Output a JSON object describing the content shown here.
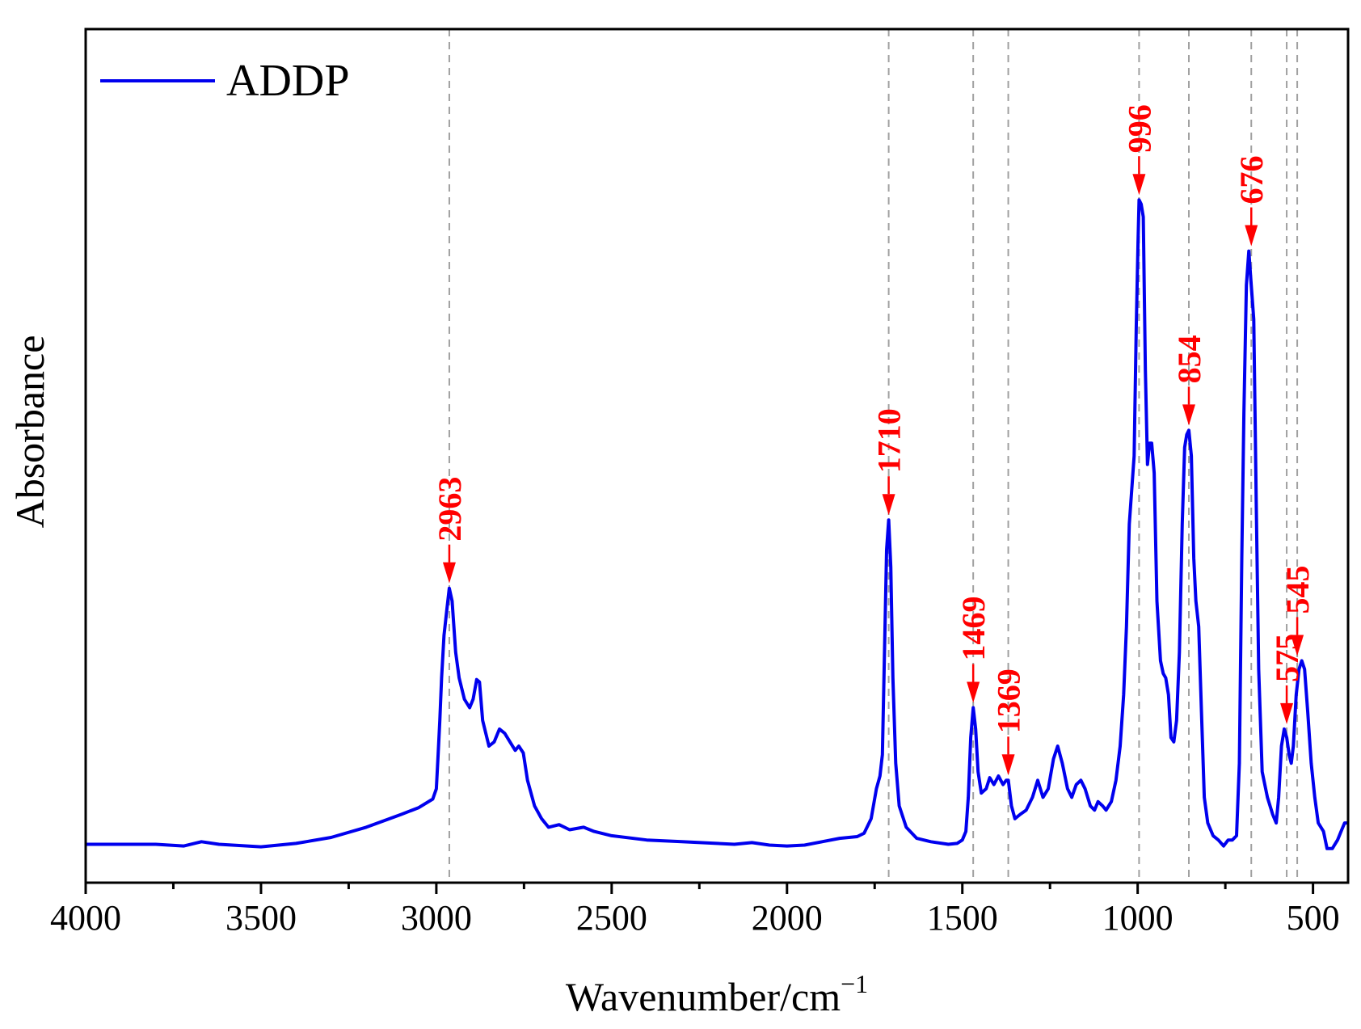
{
  "chart_data": {
    "type": "line",
    "title": "",
    "xlabel": "Wavenumber/cm",
    "xlabel_sup": "−1",
    "ylabel": "Absorbance",
    "xlim": [
      4000,
      400
    ],
    "ylim": [
      0,
      1
    ],
    "x_reversed": true,
    "y_ticks_shown": false,
    "grid": false,
    "legend": {
      "position": "top-left",
      "entries": [
        "ADDP"
      ]
    },
    "x_ticks": [
      4000,
      3500,
      3000,
      2500,
      2000,
      1500,
      1000,
      500
    ],
    "x_tick_labels": [
      "4000",
      "3500",
      "3000",
      "2500",
      "2000",
      "1500",
      "1000",
      "500"
    ],
    "x_minor_ticks": [
      3750,
      3250,
      2750,
      2250,
      1750,
      1250,
      750
    ],
    "series": [
      {
        "name": "ADDP",
        "color": "#0000ee",
        "points": [
          [
            4000,
            0.045
          ],
          [
            3800,
            0.045
          ],
          [
            3720,
            0.043
          ],
          [
            3670,
            0.048
          ],
          [
            3620,
            0.045
          ],
          [
            3500,
            0.042
          ],
          [
            3400,
            0.046
          ],
          [
            3300,
            0.053
          ],
          [
            3200,
            0.065
          ],
          [
            3100,
            0.08
          ],
          [
            3050,
            0.088
          ],
          [
            3010,
            0.098
          ],
          [
            3000,
            0.11
          ],
          [
            2995,
            0.15
          ],
          [
            2990,
            0.19
          ],
          [
            2985,
            0.24
          ],
          [
            2978,
            0.29
          ],
          [
            2970,
            0.32
          ],
          [
            2963,
            0.345
          ],
          [
            2955,
            0.33
          ],
          [
            2945,
            0.27
          ],
          [
            2935,
            0.24
          ],
          [
            2920,
            0.215
          ],
          [
            2905,
            0.205
          ],
          [
            2895,
            0.215
          ],
          [
            2885,
            0.238
          ],
          [
            2877,
            0.235
          ],
          [
            2868,
            0.19
          ],
          [
            2850,
            0.16
          ],
          [
            2835,
            0.165
          ],
          [
            2820,
            0.18
          ],
          [
            2805,
            0.175
          ],
          [
            2790,
            0.165
          ],
          [
            2775,
            0.155
          ],
          [
            2765,
            0.16
          ],
          [
            2752,
            0.152
          ],
          [
            2740,
            0.12
          ],
          [
            2720,
            0.09
          ],
          [
            2700,
            0.075
          ],
          [
            2680,
            0.065
          ],
          [
            2650,
            0.068
          ],
          [
            2620,
            0.062
          ],
          [
            2580,
            0.065
          ],
          [
            2550,
            0.06
          ],
          [
            2500,
            0.055
          ],
          [
            2400,
            0.05
          ],
          [
            2300,
            0.048
          ],
          [
            2200,
            0.046
          ],
          [
            2150,
            0.045
          ],
          [
            2100,
            0.047
          ],
          [
            2050,
            0.044
          ],
          [
            2000,
            0.043
          ],
          [
            1950,
            0.044
          ],
          [
            1900,
            0.048
          ],
          [
            1850,
            0.052
          ],
          [
            1800,
            0.054
          ],
          [
            1780,
            0.058
          ],
          [
            1760,
            0.075
          ],
          [
            1745,
            0.11
          ],
          [
            1735,
            0.125
          ],
          [
            1728,
            0.15
          ],
          [
            1722,
            0.27
          ],
          [
            1716,
            0.39
          ],
          [
            1710,
            0.425
          ],
          [
            1704,
            0.37
          ],
          [
            1698,
            0.24
          ],
          [
            1690,
            0.14
          ],
          [
            1680,
            0.09
          ],
          [
            1660,
            0.065
          ],
          [
            1630,
            0.052
          ],
          [
            1590,
            0.048
          ],
          [
            1540,
            0.045
          ],
          [
            1515,
            0.046
          ],
          [
            1500,
            0.05
          ],
          [
            1490,
            0.06
          ],
          [
            1483,
            0.1
          ],
          [
            1476,
            0.17
          ],
          [
            1469,
            0.205
          ],
          [
            1462,
            0.18
          ],
          [
            1455,
            0.13
          ],
          [
            1446,
            0.105
          ],
          [
            1432,
            0.11
          ],
          [
            1422,
            0.123
          ],
          [
            1410,
            0.115
          ],
          [
            1397,
            0.125
          ],
          [
            1384,
            0.115
          ],
          [
            1375,
            0.12
          ],
          [
            1369,
            0.12
          ],
          [
            1360,
            0.09
          ],
          [
            1350,
            0.075
          ],
          [
            1335,
            0.08
          ],
          [
            1318,
            0.085
          ],
          [
            1300,
            0.1
          ],
          [
            1285,
            0.12
          ],
          [
            1270,
            0.1
          ],
          [
            1255,
            0.11
          ],
          [
            1240,
            0.145
          ],
          [
            1228,
            0.16
          ],
          [
            1215,
            0.14
          ],
          [
            1200,
            0.11
          ],
          [
            1188,
            0.1
          ],
          [
            1175,
            0.115
          ],
          [
            1162,
            0.12
          ],
          [
            1150,
            0.11
          ],
          [
            1135,
            0.09
          ],
          [
            1123,
            0.085
          ],
          [
            1113,
            0.095
          ],
          [
            1100,
            0.09
          ],
          [
            1090,
            0.085
          ],
          [
            1075,
            0.095
          ],
          [
            1062,
            0.12
          ],
          [
            1050,
            0.16
          ],
          [
            1040,
            0.22
          ],
          [
            1032,
            0.3
          ],
          [
            1024,
            0.42
          ],
          [
            1017,
            0.46
          ],
          [
            1010,
            0.5
          ],
          [
            1004,
            0.65
          ],
          [
            999,
            0.75
          ],
          [
            996,
            0.8
          ],
          [
            990,
            0.795
          ],
          [
            984,
            0.78
          ],
          [
            978,
            0.6
          ],
          [
            972,
            0.49
          ],
          [
            966,
            0.515
          ],
          [
            960,
            0.515
          ],
          [
            953,
            0.48
          ],
          [
            945,
            0.33
          ],
          [
            935,
            0.26
          ],
          [
            927,
            0.245
          ],
          [
            920,
            0.24
          ],
          [
            912,
            0.22
          ],
          [
            905,
            0.17
          ],
          [
            897,
            0.165
          ],
          [
            889,
            0.19
          ],
          [
            881,
            0.27
          ],
          [
            873,
            0.42
          ],
          [
            866,
            0.51
          ],
          [
            860,
            0.525
          ],
          [
            854,
            0.53
          ],
          [
            847,
            0.5
          ],
          [
            840,
            0.38
          ],
          [
            834,
            0.33
          ],
          [
            826,
            0.3
          ],
          [
            818,
            0.2
          ],
          [
            810,
            0.1
          ],
          [
            800,
            0.07
          ],
          [
            785,
            0.055
          ],
          [
            770,
            0.05
          ],
          [
            755,
            0.043
          ],
          [
            742,
            0.05
          ],
          [
            730,
            0.05
          ],
          [
            718,
            0.055
          ],
          [
            710,
            0.14
          ],
          [
            703,
            0.38
          ],
          [
            697,
            0.55
          ],
          [
            690,
            0.7
          ],
          [
            683,
            0.74
          ],
          [
            676,
            0.7
          ],
          [
            669,
            0.66
          ],
          [
            662,
            0.45
          ],
          [
            655,
            0.25
          ],
          [
            645,
            0.13
          ],
          [
            630,
            0.1
          ],
          [
            615,
            0.08
          ],
          [
            605,
            0.07
          ],
          [
            598,
            0.1
          ],
          [
            590,
            0.16
          ],
          [
            582,
            0.18
          ],
          [
            575,
            0.17
          ],
          [
            568,
            0.15
          ],
          [
            562,
            0.14
          ],
          [
            556,
            0.16
          ],
          [
            548,
            0.22
          ],
          [
            540,
            0.25
          ],
          [
            532,
            0.26
          ],
          [
            524,
            0.25
          ],
          [
            515,
            0.2
          ],
          [
            505,
            0.14
          ],
          [
            495,
            0.1
          ],
          [
            485,
            0.07
          ],
          [
            470,
            0.06
          ],
          [
            460,
            0.04
          ],
          [
            445,
            0.04
          ],
          [
            430,
            0.05
          ],
          [
            420,
            0.06
          ],
          [
            410,
            0.07
          ],
          [
            400,
            0.07
          ]
        ]
      }
    ],
    "reference_lines": [
      2963,
      1710,
      1469,
      1369,
      996,
      854,
      676,
      575,
      545
    ],
    "annotations": [
      {
        "label": "2963",
        "x": 2963,
        "y": 0.345
      },
      {
        "label": "1710",
        "x": 1710,
        "y": 0.425
      },
      {
        "label": "1469",
        "x": 1469,
        "y": 0.205
      },
      {
        "label": "1369",
        "x": 1369,
        "y": 0.12
      },
      {
        "label": "996",
        "x": 996,
        "y": 0.8
      },
      {
        "label": "854",
        "x": 854,
        "y": 0.53
      },
      {
        "label": "676",
        "x": 676,
        "y": 0.74
      },
      {
        "label": "575",
        "x": 575,
        "y": 0.18
      },
      {
        "label": "545",
        "x": 545,
        "y": 0.26
      }
    ],
    "colors": {
      "line": "#0000ee",
      "annotation": "#ff0000",
      "reference": "#a0a0a0",
      "axis": "#000000"
    }
  }
}
